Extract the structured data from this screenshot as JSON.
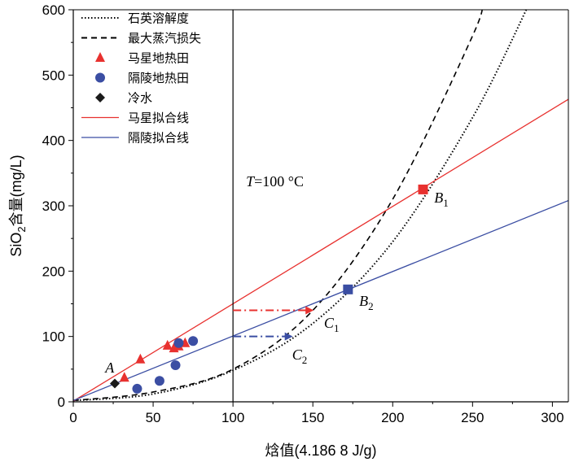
{
  "chart_data": {
    "type": "scatter",
    "xlabel": "焓值(4.186 8 J/g)",
    "ylabel_main": "SiO",
    "ylabel_sub": "2",
    "ylabel_rest": "含量(mg/L)",
    "xlim": [
      0,
      310
    ],
    "ylim": [
      0,
      600
    ],
    "xticks": [
      0,
      50,
      100,
      150,
      200,
      250,
      300
    ],
    "yticks": [
      0,
      100,
      200,
      300,
      400,
      500,
      600
    ],
    "colors": {
      "maxing": "#e8312f",
      "geling": "#3b4ea3",
      "cold": "#1a1a1a"
    },
    "legend": [
      {
        "key": "quartz",
        "label": "石英溶解度",
        "kind": "dotted"
      },
      {
        "key": "steam",
        "label": "最大蒸汽损失",
        "kind": "dashed"
      },
      {
        "key": "maxing_pts",
        "label": "马星地热田",
        "kind": "triangle"
      },
      {
        "key": "geling_pts",
        "label": "隔陵地热田",
        "kind": "circle"
      },
      {
        "key": "cold",
        "label": "冷水",
        "kind": "diamond"
      },
      {
        "key": "maxing_fit",
        "label": "马星拟合线",
        "kind": "red-line"
      },
      {
        "key": "geling_fit",
        "label": "隔陵拟合线",
        "kind": "blue-line"
      }
    ],
    "series": [
      {
        "name": "马星地热田",
        "marker": "triangle",
        "points": [
          [
            32,
            37
          ],
          [
            42,
            65
          ],
          [
            59,
            86
          ],
          [
            63,
            82
          ],
          [
            66,
            85
          ],
          [
            70,
            90
          ]
        ]
      },
      {
        "name": "隔陵地热田",
        "marker": "circle",
        "points": [
          [
            40,
            20
          ],
          [
            54,
            32
          ],
          [
            64,
            56
          ],
          [
            66,
            90
          ],
          [
            75,
            93
          ]
        ]
      },
      {
        "name": "冷水",
        "marker": "diamond",
        "points": [
          [
            26,
            28
          ]
        ]
      }
    ],
    "fit_lines": [
      {
        "name": "马星拟合线",
        "from": [
          0,
          1
        ],
        "to": [
          310,
          463
        ]
      },
      {
        "name": "隔陵拟合线",
        "from": [
          0,
          2
        ],
        "to": [
          310,
          308
        ]
      }
    ],
    "curves": {
      "quartz_solubility": [
        [
          0,
          2
        ],
        [
          50,
          12
        ],
        [
          100,
          48
        ],
        [
          150,
          120
        ],
        [
          200,
          245
        ],
        [
          250,
          435
        ],
        [
          286,
          612
        ]
      ],
      "max_steam_loss": [
        [
          0,
          2
        ],
        [
          50,
          15
        ],
        [
          100,
          50
        ],
        [
          150,
          140
        ],
        [
          200,
          310
        ],
        [
          250,
          560
        ],
        [
          256,
          612
        ]
      ]
    },
    "vertical_line": {
      "x": 100,
      "label_italic": "T",
      "label_rest": "=100 °C"
    },
    "special_points": [
      {
        "name": "B1",
        "x": 219,
        "y": 325,
        "marker": "square",
        "color": "#e8312f"
      },
      {
        "name": "B2",
        "x": 172,
        "y": 172,
        "marker": "square",
        "color": "#3b4ea3"
      }
    ],
    "arrows": [
      {
        "from": [
          100,
          140
        ],
        "to": [
          150,
          140
        ],
        "color": "#e8312f"
      },
      {
        "from": [
          100,
          100
        ],
        "to": [
          137,
          100
        ],
        "color": "#3b4ea3"
      }
    ],
    "annotations": [
      {
        "main": "A",
        "sub": "",
        "x": 20,
        "y": 45
      },
      {
        "main": "B",
        "sub": "1",
        "x": 226,
        "y": 305
      },
      {
        "main": "B",
        "sub": "2",
        "x": 179,
        "y": 147
      },
      {
        "main": "C",
        "sub": "1",
        "x": 157,
        "y": 113
      },
      {
        "main": "C",
        "sub": "2",
        "x": 137,
        "y": 65
      }
    ]
  }
}
